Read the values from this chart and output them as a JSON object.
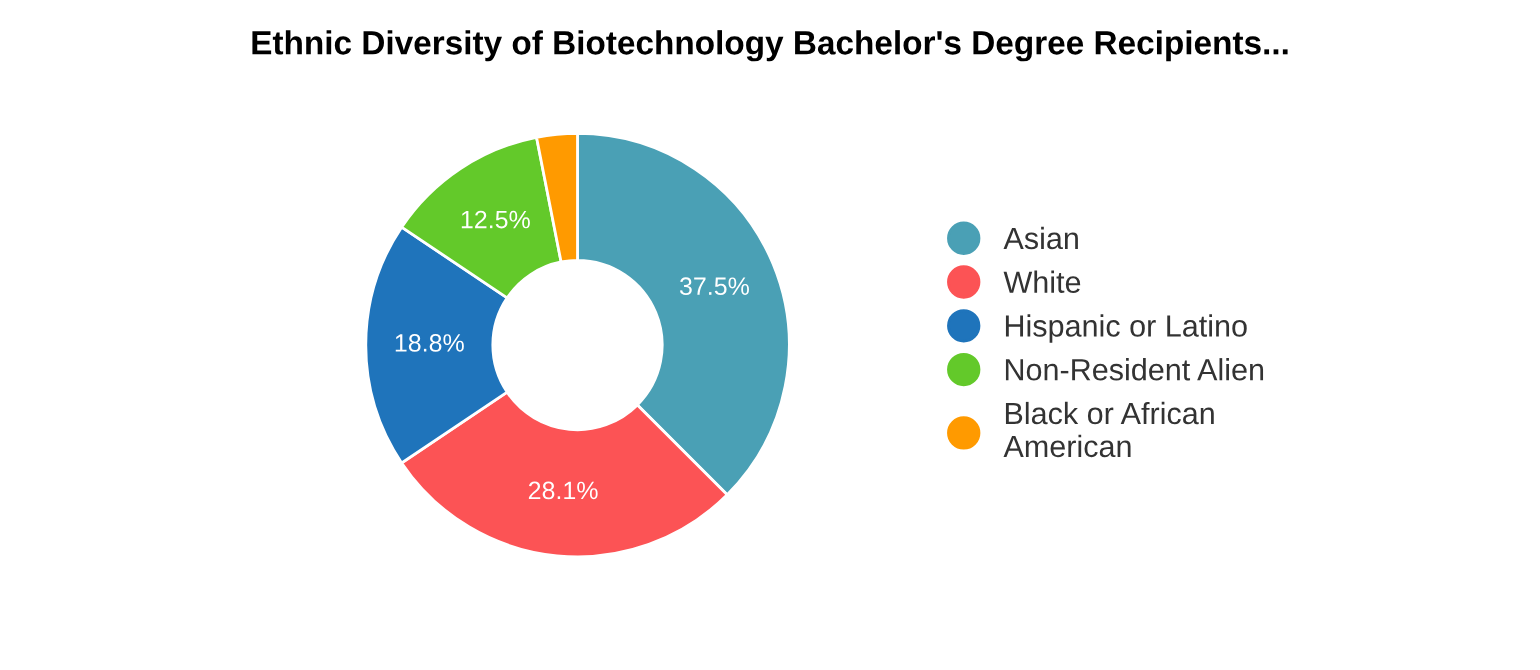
{
  "chart_data": {
    "type": "donut",
    "title": "Ethnic Diversity of Biotechnology Bachelor's Degree Recipients...",
    "categories": [
      "Asian",
      "White",
      "Hispanic or Latino",
      "Non-Resident Alien",
      "Black or African\nAmerican"
    ],
    "values": [
      37.5,
      28.1,
      18.8,
      12.5,
      3.1
    ],
    "value_labels": [
      "37.5%",
      "28.1%",
      "18.8%",
      "12.5%",
      null
    ],
    "colors": [
      "#4aa0b5",
      "#fc5355",
      "#1f74bb",
      "#63c92a",
      "#ff9a00"
    ],
    "legend": "right"
  }
}
